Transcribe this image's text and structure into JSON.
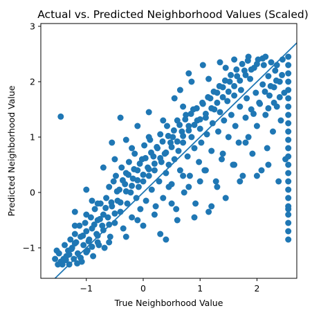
{
  "chart_data": {
    "type": "scatter",
    "title": "Actual vs. Predicted Neighborhood Values (Scaled)",
    "xlabel": "True Neighborhood Value",
    "ylabel": "Predicted Neighborhood Value",
    "xlim": [
      -1.8,
      2.7
    ],
    "ylim": [
      -1.55,
      3.05
    ],
    "xticks": [
      -1,
      0,
      1,
      2
    ],
    "xtick_labels": [
      "−1",
      "0",
      "1",
      "2"
    ],
    "yticks": [
      -1,
      0,
      1,
      2,
      3
    ],
    "ytick_labels": [
      "−1",
      "0",
      "1",
      "2",
      "3"
    ],
    "grid": false,
    "point_color": "#1f77b4",
    "line_color": "#1f77b4",
    "reference_line": {
      "x": [
        -1.8,
        2.7
      ],
      "y": [
        -1.8,
        2.7
      ]
    },
    "points": [
      [
        -1.5,
        -1.3
      ],
      [
        -1.48,
        -1.1
      ],
      [
        -1.45,
        -1.25
      ],
      [
        -1.4,
        -1.2
      ],
      [
        -1.38,
        -0.95
      ],
      [
        -1.35,
        -1.15
      ],
      [
        -1.32,
        -1.05
      ],
      [
        -1.3,
        -1.3
      ],
      [
        -1.28,
        -0.85
      ],
      [
        -1.25,
        -1.0
      ],
      [
        -1.22,
        -1.2
      ],
      [
        -1.2,
        -0.75
      ],
      [
        -1.18,
        -0.9
      ],
      [
        -1.15,
        -1.1
      ],
      [
        -1.12,
        -0.6
      ],
      [
        -1.1,
        -0.8
      ],
      [
        -1.08,
        -1.25
      ],
      [
        -1.05,
        -0.95
      ],
      [
        -1.02,
        -0.55
      ],
      [
        -1.0,
        -0.7
      ],
      [
        -0.98,
        -1.05
      ],
      [
        -0.95,
        -0.85
      ],
      [
        -0.92,
        -0.45
      ],
      [
        -0.9,
        -0.65
      ],
      [
        -0.88,
        -1.15
      ],
      [
        -0.85,
        -0.3
      ],
      [
        -0.82,
        -0.75
      ],
      [
        -0.8,
        -0.5
      ],
      [
        -0.78,
        -0.95
      ],
      [
        -0.75,
        -0.2
      ],
      [
        -0.72,
        -0.6
      ],
      [
        -0.7,
        -0.4
      ],
      [
        -0.68,
        -1.0
      ],
      [
        -0.65,
        -0.1
      ],
      [
        -0.62,
        -0.45
      ],
      [
        -0.6,
        0.1
      ],
      [
        -0.58,
        -0.8
      ],
      [
        -0.55,
        -0.25
      ],
      [
        -0.52,
        0.2
      ],
      [
        -0.5,
        -0.55
      ],
      [
        -0.48,
        0.3
      ],
      [
        -0.45,
        -0.15
      ],
      [
        -0.42,
        0.05
      ],
      [
        -0.4,
        -0.35
      ],
      [
        -0.38,
        0.45
      ],
      [
        -0.35,
        -0.65
      ],
      [
        -0.32,
        0.15
      ],
      [
        -0.3,
        0.35
      ],
      [
        -0.28,
        -0.2
      ],
      [
        -0.25,
        0.55
      ],
      [
        -0.22,
        0.0
      ],
      [
        -0.2,
        -0.45
      ],
      [
        -0.18,
        0.25
      ],
      [
        -0.15,
        0.7
      ],
      [
        -0.12,
        -0.1
      ],
      [
        -0.1,
        0.4
      ],
      [
        -0.08,
        0.1
      ],
      [
        -0.05,
        -0.3
      ],
      [
        -0.02,
        0.6
      ],
      [
        0.0,
        0.2
      ],
      [
        0.02,
        0.85
      ],
      [
        0.05,
        -0.15
      ],
      [
        0.08,
        0.45
      ],
      [
        0.1,
        0.3
      ],
      [
        0.12,
        0.95
      ],
      [
        0.15,
        0.05
      ],
      [
        0.18,
        0.65
      ],
      [
        0.2,
        0.4
      ],
      [
        0.22,
        -0.25
      ],
      [
        0.25,
        0.8
      ],
      [
        0.28,
        0.2
      ],
      [
        0.3,
        1.05
      ],
      [
        0.32,
        0.55
      ],
      [
        0.35,
        -0.1
      ],
      [
        0.38,
        0.7
      ],
      [
        0.4,
        0.35
      ],
      [
        0.42,
        1.2
      ],
      [
        0.45,
        0.5
      ],
      [
        0.48,
        0.9
      ],
      [
        0.5,
        0.15
      ],
      [
        0.52,
        1.0
      ],
      [
        0.55,
        0.6
      ],
      [
        0.58,
        -0.3
      ],
      [
        0.6,
        1.3
      ],
      [
        0.62,
        0.75
      ],
      [
        0.65,
        0.4
      ],
      [
        0.68,
        1.1
      ],
      [
        0.7,
        0.9
      ],
      [
        0.72,
        0.0
      ],
      [
        0.75,
        1.4
      ],
      [
        0.78,
        0.65
      ],
      [
        0.8,
        1.2
      ],
      [
        0.82,
        0.3
      ],
      [
        0.85,
        1.0
      ],
      [
        0.88,
        1.5
      ],
      [
        0.9,
        0.8
      ],
      [
        0.92,
        -0.2
      ],
      [
        0.95,
        1.3
      ],
      [
        0.98,
        0.55
      ],
      [
        1.0,
        1.15
      ],
      [
        1.02,
        0.9
      ],
      [
        1.05,
        1.6
      ],
      [
        1.08,
        0.4
      ],
      [
        1.1,
        1.35
      ],
      [
        1.12,
        1.05
      ],
      [
        1.15,
        -0.35
      ],
      [
        1.18,
        1.7
      ],
      [
        1.2,
        0.75
      ],
      [
        1.22,
        1.25
      ],
      [
        1.25,
        1.5
      ],
      [
        1.28,
        0.2
      ],
      [
        1.3,
        1.8
      ],
      [
        1.32,
        1.1
      ],
      [
        1.35,
        1.45
      ],
      [
        1.38,
        0.6
      ],
      [
        1.4,
        1.9
      ],
      [
        1.42,
        1.3
      ],
      [
        1.45,
        -0.1
      ],
      [
        1.48,
        1.65
      ],
      [
        1.5,
        1.0
      ],
      [
        1.52,
        2.0
      ],
      [
        1.55,
        1.4
      ],
      [
        1.58,
        0.5
      ],
      [
        1.6,
        1.75
      ],
      [
        1.62,
        1.2
      ],
      [
        1.65,
        2.1
      ],
      [
        1.68,
        0.9
      ],
      [
        1.7,
        1.55
      ],
      [
        1.72,
        1.85
      ],
      [
        1.75,
        0.3
      ],
      [
        1.78,
        2.2
      ],
      [
        1.8,
        1.35
      ],
      [
        1.82,
        1.7
      ],
      [
        1.85,
        1.0
      ],
      [
        1.88,
        2.05
      ],
      [
        1.9,
        1.5
      ],
      [
        1.92,
        0.7
      ],
      [
        1.95,
        2.25
      ],
      [
        1.98,
        1.8
      ],
      [
        2.0,
        1.2
      ],
      [
        2.02,
        2.4
      ],
      [
        2.05,
        1.6
      ],
      [
        2.08,
        0.4
      ],
      [
        2.1,
        1.95
      ],
      [
        2.12,
        2.3
      ],
      [
        2.15,
        1.4
      ],
      [
        2.18,
        0.8
      ],
      [
        2.2,
        2.1
      ],
      [
        2.22,
        1.75
      ],
      [
        2.25,
        2.35
      ],
      [
        2.28,
        1.1
      ],
      [
        2.3,
        1.9
      ],
      [
        2.32,
        2.2
      ],
      [
        2.35,
        1.55
      ],
      [
        2.38,
        0.2
      ],
      [
        2.4,
        2.0
      ],
      [
        2.42,
        1.3
      ],
      [
        2.45,
        2.4
      ],
      [
        2.48,
        1.8
      ],
      [
        2.5,
        0.6
      ],
      [
        2.55,
        2.45
      ],
      [
        2.55,
        2.3
      ],
      [
        2.55,
        2.15
      ],
      [
        2.55,
        2.0
      ],
      [
        2.55,
        1.85
      ],
      [
        2.55,
        1.7
      ],
      [
        2.55,
        1.55
      ],
      [
        2.55,
        1.4
      ],
      [
        2.55,
        1.25
      ],
      [
        2.55,
        1.1
      ],
      [
        2.55,
        0.95
      ],
      [
        2.55,
        0.8
      ],
      [
        2.55,
        0.65
      ],
      [
        2.55,
        0.5
      ],
      [
        2.55,
        0.35
      ],
      [
        2.55,
        0.2
      ],
      [
        2.55,
        0.05
      ],
      [
        2.55,
        -0.1
      ],
      [
        2.55,
        -0.25
      ],
      [
        2.55,
        -0.4
      ],
      [
        2.55,
        -0.55
      ],
      [
        2.55,
        -0.7
      ],
      [
        2.55,
        -0.85
      ],
      [
        2.55,
        -0.3
      ],
      [
        -1.45,
        1.37
      ],
      [
        -1.2,
        -0.35
      ],
      [
        -1.0,
        0.05
      ],
      [
        -0.7,
        0.45
      ],
      [
        -0.4,
        1.35
      ],
      [
        0.3,
        -0.75
      ],
      [
        0.6,
        -0.5
      ],
      [
        0.9,
        -0.45
      ],
      [
        -0.55,
        0.9
      ],
      [
        -0.9,
        -0.15
      ],
      [
        0.0,
        -0.6
      ],
      [
        0.4,
        -0.85
      ],
      [
        1.2,
        -0.25
      ],
      [
        1.7,
        0.2
      ],
      [
        1.3,
        0.1
      ],
      [
        0.8,
        2.15
      ],
      [
        0.55,
        1.7
      ],
      [
        0.1,
        1.45
      ],
      [
        1.05,
        2.3
      ],
      [
        0.85,
        2.0
      ],
      [
        -0.1,
        1.2
      ],
      [
        -0.3,
        0.95
      ],
      [
        0.7,
        1.55
      ],
      [
        1.45,
        2.25
      ],
      [
        -1.55,
        -1.2
      ],
      [
        -1.52,
        -1.05
      ],
      [
        -1.42,
        -1.3
      ],
      [
        -1.36,
        -1.22
      ],
      [
        -1.3,
        -1.12
      ],
      [
        -1.26,
        -1.02
      ],
      [
        -1.2,
        -0.92
      ],
      [
        -1.16,
        -1.28
      ],
      [
        -1.1,
        -1.18
      ],
      [
        -1.06,
        -0.78
      ],
      [
        -1.0,
        -1.08
      ],
      [
        -0.96,
        -0.88
      ],
      [
        -0.9,
        -0.98
      ],
      [
        -0.86,
        -0.58
      ],
      [
        -0.8,
        -0.78
      ],
      [
        -0.76,
        -0.48
      ],
      [
        -0.7,
        -0.68
      ],
      [
        -0.66,
        -0.28
      ],
      [
        -0.6,
        -0.58
      ],
      [
        -0.56,
        -0.18
      ],
      [
        -0.5,
        -0.38
      ],
      [
        -0.46,
        0.02
      ],
      [
        -0.4,
        -0.18
      ],
      [
        -0.36,
        0.22
      ],
      [
        -0.3,
        0.02
      ],
      [
        -0.26,
        0.32
      ],
      [
        -0.2,
        0.12
      ],
      [
        -0.16,
        0.42
      ],
      [
        -0.1,
        0.22
      ],
      [
        -0.06,
        0.52
      ],
      [
        0.0,
        0.32
      ],
      [
        0.04,
        0.62
      ],
      [
        0.1,
        0.42
      ],
      [
        0.14,
        0.72
      ],
      [
        0.2,
        0.52
      ],
      [
        0.24,
        0.82
      ],
      [
        0.3,
        0.62
      ],
      [
        0.34,
        0.92
      ],
      [
        0.4,
        0.72
      ],
      [
        0.44,
        1.02
      ],
      [
        0.5,
        0.82
      ],
      [
        0.54,
        1.12
      ],
      [
        0.6,
        0.92
      ],
      [
        0.64,
        1.22
      ],
      [
        0.7,
        1.02
      ],
      [
        0.74,
        1.32
      ],
      [
        0.8,
        1.12
      ],
      [
        0.84,
        1.42
      ],
      [
        0.9,
        1.22
      ],
      [
        0.94,
        1.52
      ],
      [
        1.0,
        1.32
      ],
      [
        1.04,
        1.62
      ],
      [
        1.1,
        1.42
      ],
      [
        1.14,
        1.72
      ],
      [
        1.2,
        1.52
      ],
      [
        1.24,
        1.82
      ],
      [
        1.3,
        1.62
      ],
      [
        1.34,
        1.92
      ],
      [
        1.4,
        1.72
      ],
      [
        1.44,
        2.02
      ],
      [
        1.5,
        1.82
      ],
      [
        1.54,
        2.12
      ],
      [
        1.6,
        1.92
      ],
      [
        1.64,
        2.22
      ],
      [
        1.7,
        2.02
      ],
      [
        1.74,
        2.32
      ],
      [
        1.8,
        2.12
      ],
      [
        1.84,
        2.38
      ],
      [
        1.9,
        2.22
      ],
      [
        1.94,
        1.42
      ],
      [
        2.0,
        2.32
      ],
      [
        2.04,
        1.62
      ],
      [
        2.1,
        2.42
      ],
      [
        2.14,
        1.82
      ],
      [
        2.2,
        1.52
      ],
      [
        2.24,
        1.92
      ],
      [
        2.3,
        1.62
      ],
      [
        2.34,
        2.02
      ],
      [
        2.4,
        1.72
      ],
      [
        2.44,
        2.12
      ],
      [
        -0.8,
        -0.2
      ],
      [
        -0.6,
        -0.9
      ],
      [
        -0.3,
        -0.8
      ],
      [
        -0.1,
        -0.5
      ],
      [
        0.2,
        -0.4
      ],
      [
        0.5,
        -0.2
      ],
      [
        0.8,
        0.1
      ],
      [
        1.1,
        0.4
      ],
      [
        1.4,
        0.7
      ],
      [
        1.6,
        0.5
      ],
      [
        1.8,
        0.9
      ],
      [
        2.0,
        0.3
      ],
      [
        2.2,
        0.5
      ],
      [
        1.0,
        0.2
      ],
      [
        0.7,
        0.3
      ],
      [
        0.45,
        0.1
      ],
      [
        -1.2,
        -0.6
      ],
      [
        -1.0,
        -0.4
      ],
      [
        -0.8,
        -0.9
      ],
      [
        -0.5,
        0.6
      ],
      [
        -0.2,
        0.8
      ],
      [
        0.1,
        1.0
      ],
      [
        0.35,
        1.3
      ],
      [
        0.65,
        1.85
      ],
      [
        1.15,
        2.05
      ],
      [
        1.35,
        2.35
      ],
      [
        1.6,
        2.4
      ],
      [
        1.85,
        2.45
      ],
      [
        2.15,
        2.45
      ],
      [
        2.35,
        2.3
      ]
    ]
  }
}
